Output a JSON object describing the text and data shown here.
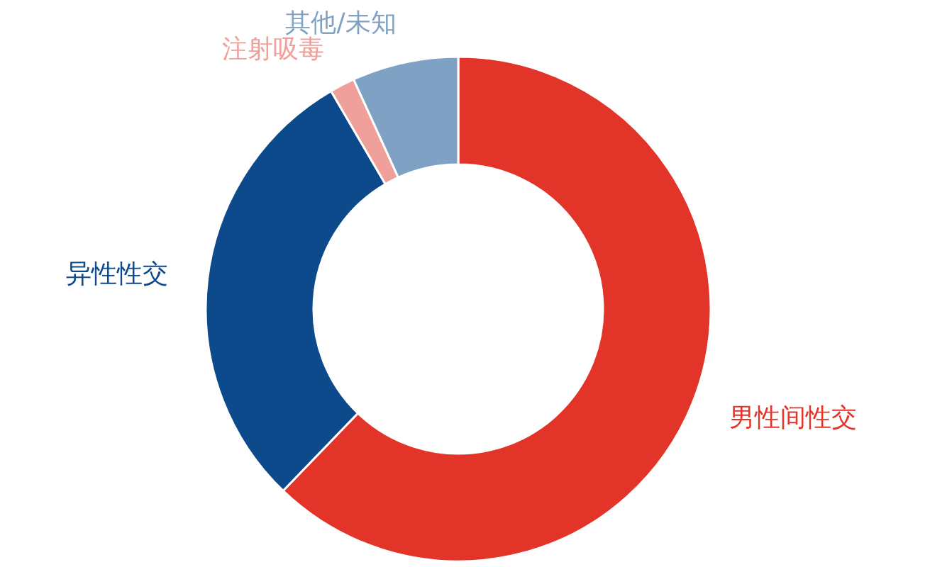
{
  "chart_data": {
    "type": "donut",
    "categories": [
      "男性间性交",
      "异性性交",
      "注射吸毒",
      "其他/未知"
    ],
    "values": [
      62.2,
      29.4,
      1.6,
      6.8
    ],
    "colors": [
      "#e3342a",
      "#0d4a8c",
      "#f0a09a",
      "#7fa2c4"
    ],
    "legend": false
  }
}
